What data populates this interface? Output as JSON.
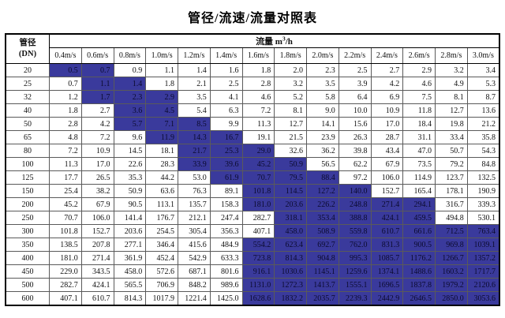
{
  "title": "管径/流速/流量对照表",
  "table": {
    "corner_header": {
      "line1": "管径",
      "line2": "(DN)"
    },
    "flow_header": {
      "prefix": "流量 m",
      "sup": "3",
      "suffix": "/h"
    },
    "velocity_headers": [
      "0.4m/s",
      "0.6m/s",
      "0.8m/s",
      "1.0m/s",
      "1.2m/s",
      "1.4m/s",
      "1.6m/s",
      "1.8m/s",
      "2.0m/s",
      "2.2m/s",
      "2.4m/s",
      "2.6m/s",
      "2.8m/s",
      "3.0m/s"
    ],
    "highlight_color": "#3a3a9c",
    "rows": [
      {
        "dn": "20",
        "values": [
          "0.5",
          "0.7",
          "0.9",
          "1.1",
          "1.4",
          "1.6",
          "1.8",
          "2.0",
          "2.3",
          "2.5",
          "2.7",
          "2.9",
          "3.2",
          "3.4"
        ],
        "highlighted_columns": [
          0,
          1
        ]
      },
      {
        "dn": "25",
        "values": [
          "0.7",
          "1.1",
          "1.4",
          "1.8",
          "2.1",
          "2.5",
          "2.8",
          "3.2",
          "3.5",
          "3.9",
          "4.2",
          "4.6",
          "4.9",
          "5.3"
        ],
        "highlighted_columns": [
          1,
          2
        ]
      },
      {
        "dn": "32",
        "values": [
          "1.2",
          "1.7",
          "2.3",
          "2.9",
          "3.5",
          "4.1",
          "4.6",
          "5.2",
          "5.8",
          "6.4",
          "6.9",
          "7.5",
          "8.1",
          "8.7"
        ],
        "highlighted_columns": [
          1,
          2,
          3
        ]
      },
      {
        "dn": "40",
        "values": [
          "1.8",
          "2.7",
          "3.6",
          "4.5",
          "5.4",
          "6.3",
          "7.2",
          "8.1",
          "9.0",
          "10.0",
          "10.9",
          "11.8",
          "12.7",
          "13.6"
        ],
        "highlighted_columns": [
          2,
          3
        ]
      },
      {
        "dn": "50",
        "values": [
          "2.8",
          "4.2",
          "5.7",
          "7.1",
          "8.5",
          "9.9",
          "11.3",
          "12.7",
          "14.1",
          "15.6",
          "17.0",
          "18.4",
          "19.8",
          "21.2"
        ],
        "highlighted_columns": [
          2,
          3,
          4
        ]
      },
      {
        "dn": "65",
        "values": [
          "4.8",
          "7.2",
          "9.6",
          "11.9",
          "14.3",
          "16.7",
          "19.1",
          "21.5",
          "23.9",
          "26.3",
          "28.7",
          "31.1",
          "33.4",
          "35.8"
        ],
        "highlighted_columns": [
          3,
          4,
          5
        ]
      },
      {
        "dn": "80",
        "values": [
          "7.2",
          "10.9",
          "14.5",
          "18.1",
          "21.7",
          "25.3",
          "29.0",
          "32.6",
          "36.2",
          "39.8",
          "43.4",
          "47.0",
          "50.7",
          "54.3"
        ],
        "highlighted_columns": [
          4,
          5,
          6
        ]
      },
      {
        "dn": "100",
        "values": [
          "11.3",
          "17.0",
          "22.6",
          "28.3",
          "33.9",
          "39.6",
          "45.2",
          "50.9",
          "56.5",
          "62.2",
          "67.9",
          "73.5",
          "79.2",
          "84.8"
        ],
        "highlighted_columns": [
          4,
          5,
          6,
          7
        ]
      },
      {
        "dn": "125",
        "values": [
          "17.7",
          "26.5",
          "35.3",
          "44.2",
          "53.0",
          "61.9",
          "70.7",
          "79.5",
          "88.4",
          "97.2",
          "106.0",
          "114.9",
          "123.7",
          "132.5"
        ],
        "highlighted_columns": [
          5,
          6,
          7,
          8
        ]
      },
      {
        "dn": "150",
        "values": [
          "25.4",
          "38.2",
          "50.9",
          "63.6",
          "76.3",
          "89.1",
          "101.8",
          "114.5",
          "127.2",
          "140.0",
          "152.7",
          "165.4",
          "178.1",
          "190.9"
        ],
        "highlighted_columns": [
          6,
          7,
          8,
          9
        ]
      },
      {
        "dn": "200",
        "values": [
          "45.2",
          "67.9",
          "90.5",
          "113.1",
          "135.7",
          "158.3",
          "181.0",
          "203.6",
          "226.2",
          "248.8",
          "271.4",
          "294.1",
          "316.7",
          "339.3"
        ],
        "highlighted_columns": [
          6,
          7,
          8,
          9,
          10,
          11
        ]
      },
      {
        "dn": "250",
        "values": [
          "70.7",
          "106.0",
          "141.4",
          "176.7",
          "212.1",
          "247.4",
          "282.7",
          "318.1",
          "353.4",
          "388.8",
          "424.1",
          "459.5",
          "494.8",
          "530.1"
        ],
        "highlighted_columns": [
          7,
          8,
          9,
          10,
          11
        ]
      },
      {
        "dn": "300",
        "values": [
          "101.8",
          "152.7",
          "203.6",
          "254.5",
          "305.4",
          "356.3",
          "407.1",
          "458.0",
          "508.9",
          "559.8",
          "610.7",
          "661.6",
          "712.5",
          "763.4"
        ],
        "highlighted_columns": [
          7,
          8,
          9,
          10,
          11,
          12,
          13
        ]
      },
      {
        "dn": "350",
        "values": [
          "138.5",
          "207.8",
          "277.1",
          "346.4",
          "415.6",
          "484.9",
          "554.2",
          "623.4",
          "692.7",
          "762.0",
          "831.3",
          "900.5",
          "969.8",
          "1039.1"
        ],
        "highlighted_columns": [
          6,
          7,
          8,
          9,
          10,
          11,
          12,
          13
        ]
      },
      {
        "dn": "400",
        "values": [
          "181.0",
          "271.4",
          "361.9",
          "452.4",
          "542.9",
          "633.3",
          "723.8",
          "814.3",
          "904.8",
          "995.3",
          "1085.7",
          "1176.2",
          "1266.7",
          "1357.2"
        ],
        "highlighted_columns": [
          6,
          7,
          8,
          9,
          10,
          11,
          12,
          13
        ]
      },
      {
        "dn": "450",
        "values": [
          "229.0",
          "343.5",
          "458.0",
          "572.6",
          "687.1",
          "801.6",
          "916.1",
          "1030.6",
          "1145.1",
          "1259.6",
          "1374.1",
          "1488.6",
          "1603.2",
          "1717.7"
        ],
        "highlighted_columns": [
          6,
          7,
          8,
          9,
          10,
          11,
          12,
          13
        ]
      },
      {
        "dn": "500",
        "values": [
          "282.7",
          "424.1",
          "565.5",
          "706.9",
          "848.2",
          "989.6",
          "1131.0",
          "1272.3",
          "1413.7",
          "1555.1",
          "1696.5",
          "1837.8",
          "1979.2",
          "2120.6"
        ],
        "highlighted_columns": [
          6,
          7,
          8,
          9,
          10,
          11,
          12,
          13
        ]
      },
      {
        "dn": "600",
        "values": [
          "407.1",
          "610.7",
          "814.3",
          "1017.9",
          "1221.4",
          "1425.0",
          "1628.6",
          "1832.2",
          "2035.7",
          "2239.3",
          "2442.9",
          "2646.5",
          "2850.0",
          "3053.6"
        ],
        "highlighted_columns": [
          6,
          7,
          8,
          9,
          10,
          11,
          12,
          13
        ]
      }
    ]
  }
}
